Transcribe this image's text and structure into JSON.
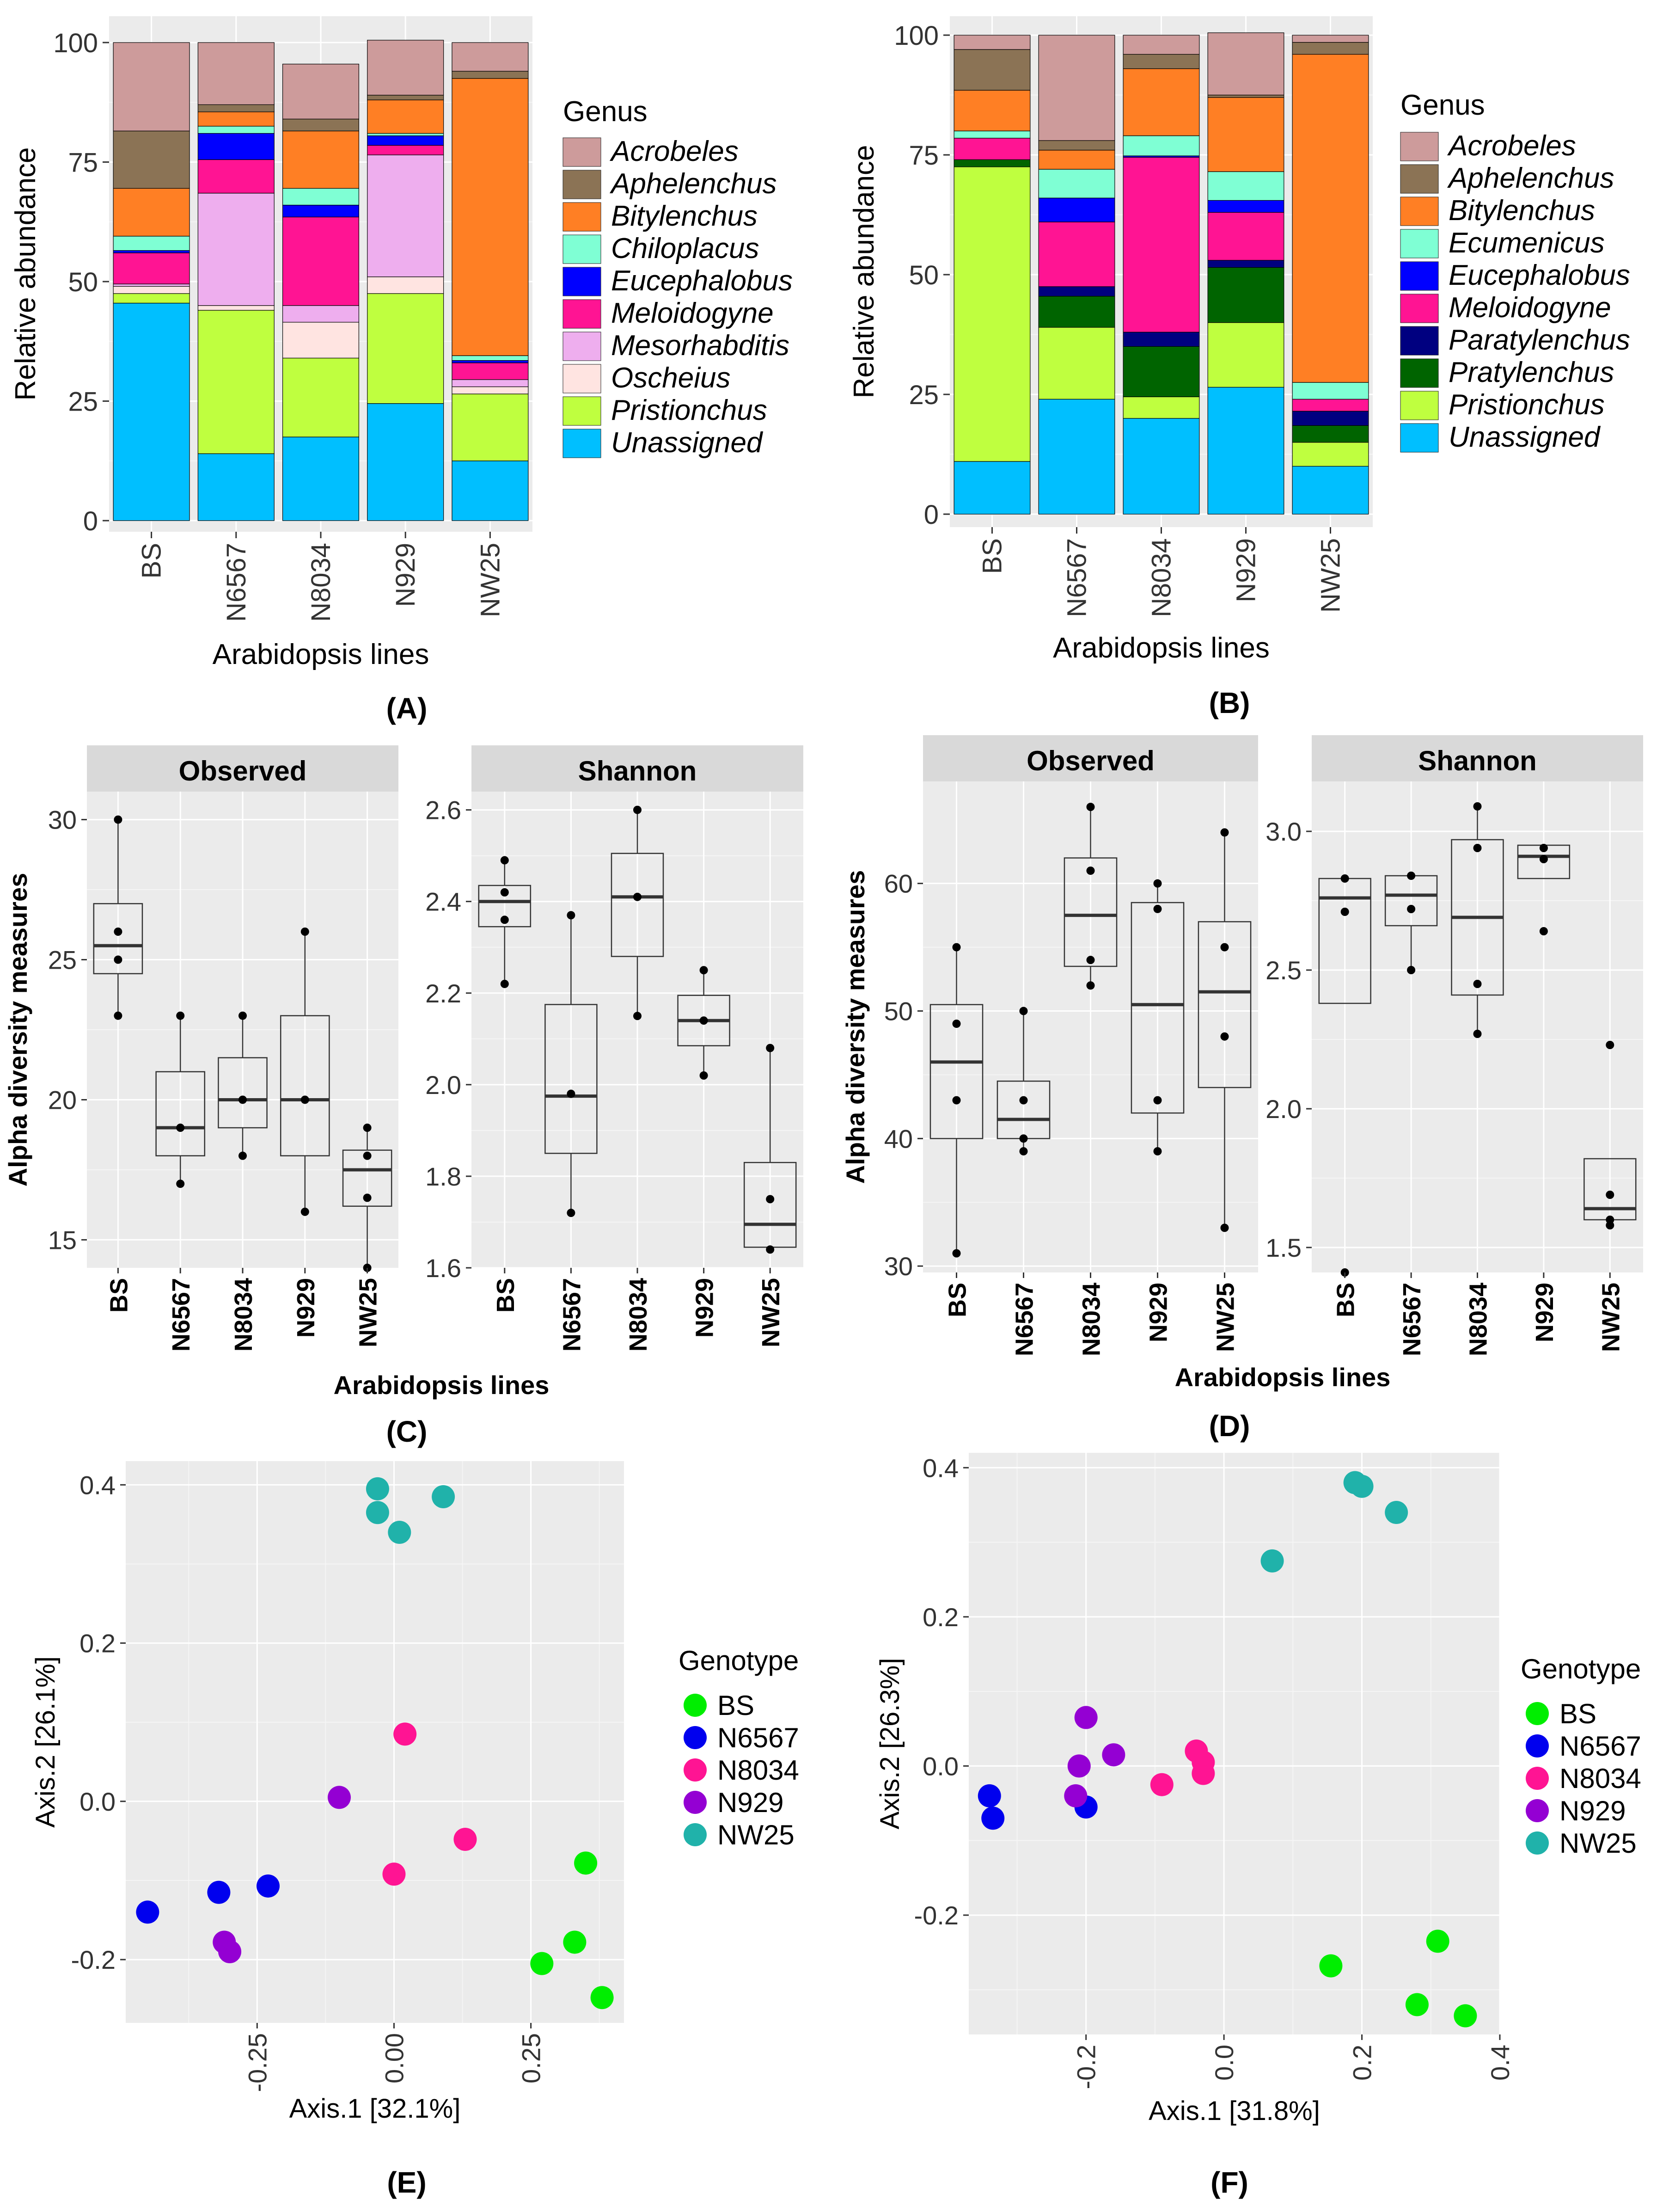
{
  "panel_labels": [
    "(A)",
    "(B)",
    "(C)",
    "(D)",
    "(E)",
    "(F)"
  ],
  "chart_data": [
    {
      "panel": "A",
      "type": "bar",
      "stacked": true,
      "title": "",
      "xlabel": "Arabidopsis lines",
      "ylabel": "Relative abundance",
      "ylim": [
        0,
        100
      ],
      "yticks": [
        0,
        25,
        50,
        75,
        100
      ],
      "categories": [
        "BS",
        "N6567",
        "N8034",
        "N929",
        "NW25"
      ],
      "legend_title": "Genus",
      "series": [
        {
          "name": "Unassigned",
          "color": "#00BFFF",
          "values": [
            45.5,
            14,
            17.5,
            24.5,
            12.5
          ]
        },
        {
          "name": "Pristionchus",
          "color": "#BFFF3F",
          "values": [
            2,
            30,
            16.5,
            23,
            14
          ]
        },
        {
          "name": "Oscheius",
          "color": "#FFE4E1",
          "values": [
            1.5,
            1,
            7.5,
            3.5,
            1.5
          ]
        },
        {
          "name": "Mesorhabditis",
          "color": "#EEAEEE",
          "values": [
            0.5,
            23.5,
            3.5,
            25.5,
            1.5
          ]
        },
        {
          "name": "Meloidogyne",
          "color": "#FF1493",
          "values": [
            6.5,
            7,
            18.5,
            2,
            3.5
          ]
        },
        {
          "name": "Eucephalobus",
          "color": "#0000FF",
          "values": [
            0.5,
            5.5,
            2.5,
            2,
            0.5
          ]
        },
        {
          "name": "Chiloplacus",
          "color": "#7FFFD4",
          "values": [
            3,
            1.5,
            3.5,
            0.5,
            1
          ]
        },
        {
          "name": "Bitylenchus",
          "color": "#FF7F24",
          "values": [
            10,
            3,
            12,
            7,
            58
          ]
        },
        {
          "name": "Aphelenchus",
          "color": "#8B7355",
          "values": [
            12,
            1.5,
            2.5,
            1,
            1.5
          ]
        },
        {
          "name": "Acrobeles",
          "color": "#CD9B9B",
          "values": [
            18.5,
            13,
            11.5,
            11.5,
            6
          ]
        }
      ]
    },
    {
      "panel": "B",
      "type": "bar",
      "stacked": true,
      "title": "",
      "xlabel": "Arabidopsis lines",
      "ylabel": "Relative abundance",
      "ylim": [
        0,
        100
      ],
      "yticks": [
        0,
        25,
        50,
        75,
        100
      ],
      "categories": [
        "BS",
        "N6567",
        "N8034",
        "N929",
        "NW25"
      ],
      "legend_title": "Genus",
      "series": [
        {
          "name": "Unassigned",
          "color": "#00BFFF",
          "values": [
            11,
            24,
            20,
            26.5,
            10
          ]
        },
        {
          "name": "Pristionchus",
          "color": "#BFFF3F",
          "values": [
            61.5,
            15,
            4.5,
            13.5,
            5
          ]
        },
        {
          "name": "Pratylenchus",
          "color": "#006400",
          "values": [
            1.5,
            6.5,
            10.5,
            11.5,
            3.5
          ]
        },
        {
          "name": "Paratylenchus",
          "color": "#000080",
          "values": [
            0,
            2,
            3,
            1.5,
            3
          ]
        },
        {
          "name": "Meloidogyne",
          "color": "#FF1493",
          "values": [
            4.5,
            13.5,
            36.5,
            10,
            2.5
          ]
        },
        {
          "name": "Eucephalobus",
          "color": "#0000FF",
          "values": [
            0,
            5,
            0.3,
            2.5,
            0
          ]
        },
        {
          "name": "Ecumenicus",
          "color": "#7FFFD4",
          "values": [
            1.5,
            6,
            4.2,
            6,
            3.5
          ]
        },
        {
          "name": "Bitylenchus",
          "color": "#FF7F24",
          "values": [
            8.5,
            4,
            14,
            15.5,
            68.5
          ]
        },
        {
          "name": "Aphelenchus",
          "color": "#8B7355",
          "values": [
            8.5,
            2,
            3,
            0.5,
            2.5
          ]
        },
        {
          "name": "Acrobeles",
          "color": "#CD9B9B",
          "values": [
            3,
            22,
            4,
            13,
            1.5
          ]
        }
      ]
    },
    {
      "panel": "C",
      "type": "box",
      "xlabel": "Arabidopsis lines",
      "ylabel": "Alpha diversity measures",
      "categories": [
        "BS",
        "N6567",
        "N8034",
        "N929",
        "NW25"
      ],
      "facets": [
        {
          "name": "Observed",
          "ylim": [
            14,
            31
          ],
          "yticks": [
            15,
            20,
            25,
            30
          ],
          "boxes": [
            {
              "q1": 24.5,
              "median": 25.5,
              "q3": 27,
              "wlo": 23,
              "whi": 30,
              "points": [
                23,
                25,
                26,
                30
              ]
            },
            {
              "q1": 18,
              "median": 19,
              "q3": 21,
              "wlo": 17,
              "whi": 23,
              "points": [
                17,
                19,
                23
              ]
            },
            {
              "q1": 19,
              "median": 20,
              "q3": 21.5,
              "wlo": 18,
              "whi": 23,
              "points": [
                18,
                20,
                23
              ]
            },
            {
              "q1": 18,
              "median": 20,
              "q3": 23,
              "wlo": 16,
              "whi": 26,
              "points": [
                16,
                20,
                26
              ]
            },
            {
              "q1": 16.2,
              "median": 17.5,
              "q3": 18.2,
              "wlo": 14,
              "whi": 19,
              "points": [
                14,
                16.5,
                18,
                19
              ]
            }
          ]
        },
        {
          "name": "Shannon",
          "ylim": [
            1.6,
            2.64
          ],
          "yticks": [
            1.6,
            1.8,
            2.0,
            2.2,
            2.4,
            2.6
          ],
          "tick_labels": [
            "1.6",
            "1.8",
            "2.0",
            "2.2",
            "2.4",
            "2.6"
          ],
          "boxes": [
            {
              "q1": 2.345,
              "median": 2.4,
              "q3": 2.435,
              "wlo": 2.22,
              "whi": 2.49,
              "points": [
                2.22,
                2.36,
                2.42,
                2.49
              ]
            },
            {
              "q1": 1.85,
              "median": 1.975,
              "q3": 2.175,
              "wlo": 1.72,
              "whi": 2.37,
              "points": [
                1.72,
                1.98,
                2.37
              ]
            },
            {
              "q1": 2.28,
              "median": 2.41,
              "q3": 2.505,
              "wlo": 2.15,
              "whi": 2.6,
              "points": [
                2.15,
                2.41,
                2.6
              ]
            },
            {
              "q1": 2.085,
              "median": 2.14,
              "q3": 2.195,
              "wlo": 2.02,
              "whi": 2.25,
              "points": [
                2.02,
                2.14,
                2.25
              ]
            },
            {
              "q1": 1.645,
              "median": 1.695,
              "q3": 1.83,
              "wlo": 1.645,
              "whi": 2.08,
              "points": [
                1.64,
                1.75,
                2.08
              ]
            }
          ]
        }
      ]
    },
    {
      "panel": "D",
      "type": "box",
      "xlabel": "Arabidopsis lines",
      "ylabel": "Alpha diversity measures",
      "categories": [
        "BS",
        "N6567",
        "N8034",
        "N929",
        "NW25"
      ],
      "facets": [
        {
          "name": "Observed",
          "ylim": [
            29.5,
            68
          ],
          "yticks": [
            30,
            40,
            50,
            60
          ],
          "boxes": [
            {
              "q1": 40,
              "median": 46,
              "q3": 50.5,
              "wlo": 31,
              "whi": 55,
              "points": [
                31,
                43,
                49,
                55
              ]
            },
            {
              "q1": 40,
              "median": 41.5,
              "q3": 44.5,
              "wlo": 39,
              "whi": 50,
              "points": [
                39,
                40,
                43,
                50
              ]
            },
            {
              "q1": 53.5,
              "median": 57.5,
              "q3": 62,
              "wlo": 52,
              "whi": 66,
              "points": [
                52,
                54,
                61,
                66
              ]
            },
            {
              "q1": 42,
              "median": 50.5,
              "q3": 58.5,
              "wlo": 39,
              "whi": 60,
              "points": [
                39,
                43,
                58,
                60
              ]
            },
            {
              "q1": 44,
              "median": 51.5,
              "q3": 57,
              "wlo": 33,
              "whi": 64,
              "points": [
                33,
                48,
                55,
                64
              ]
            }
          ]
        },
        {
          "name": "Shannon",
          "ylim": [
            1.41,
            3.18
          ],
          "yticks": [
            1.5,
            2.0,
            2.5,
            3.0
          ],
          "tick_labels": [
            "1.5",
            "2.0",
            "2.5",
            "3.0"
          ],
          "boxes": [
            {
              "q1": 2.38,
              "median": 2.76,
              "q3": 2.83,
              "wlo": 2.38,
              "whi": 2.83,
              "points": [
                1.41,
                2.71,
                2.83
              ]
            },
            {
              "q1": 2.66,
              "median": 2.77,
              "q3": 2.84,
              "wlo": 2.5,
              "whi": 2.84,
              "points": [
                2.5,
                2.72,
                2.84
              ]
            },
            {
              "q1": 2.41,
              "median": 2.69,
              "q3": 2.97,
              "wlo": 2.27,
              "whi": 3.09,
              "points": [
                2.27,
                2.45,
                2.94,
                3.09
              ]
            },
            {
              "q1": 2.83,
              "median": 2.91,
              "q3": 2.95,
              "wlo": 2.83,
              "whi": 2.95,
              "points": [
                2.64,
                2.9,
                2.94
              ]
            },
            {
              "q1": 1.6,
              "median": 1.64,
              "q3": 1.82,
              "wlo": 1.58,
              "whi": 1.82,
              "points": [
                1.58,
                1.6,
                1.69,
                2.23
              ]
            }
          ]
        }
      ]
    },
    {
      "panel": "E",
      "type": "scatter",
      "xlabel": "Axis.1   [32.1%]",
      "ylabel": "Axis.2   [26.1%]",
      "xlim": [
        -0.49,
        0.42
      ],
      "ylim": [
        -0.28,
        0.43
      ],
      "xticks": [
        -0.25,
        0.0,
        0.25
      ],
      "xtick_labels": [
        "-0.25",
        "0.00",
        "0.25"
      ],
      "yticks": [
        -0.2,
        0.0,
        0.2,
        0.4
      ],
      "ytick_labels": [
        "-0.2",
        "0.0",
        "0.2",
        "0.4"
      ],
      "legend_title": "Genotype",
      "groups": [
        {
          "name": "BS",
          "color": "#00EE00",
          "points": [
            [
              0.35,
              -0.078
            ],
            [
              0.33,
              -0.178
            ],
            [
              0.27,
              -0.205
            ],
            [
              0.38,
              -0.248
            ]
          ]
        },
        {
          "name": "N6567",
          "color": "#0000EE",
          "points": [
            [
              -0.45,
              -0.14
            ],
            [
              -0.32,
              -0.115
            ],
            [
              -0.23,
              -0.107
            ]
          ]
        },
        {
          "name": "N8034",
          "color": "#FF1493",
          "points": [
            [
              0.02,
              0.085
            ],
            [
              0.13,
              -0.048
            ],
            [
              0.0,
              -0.092
            ]
          ]
        },
        {
          "name": "N929",
          "color": "#9400D3",
          "points": [
            [
              -0.1,
              0.005
            ],
            [
              -0.31,
              -0.178
            ],
            [
              -0.3,
              -0.19
            ]
          ]
        },
        {
          "name": "NW25",
          "color": "#20B2AA",
          "points": [
            [
              -0.03,
              0.395
            ],
            [
              -0.03,
              0.365
            ],
            [
              0.01,
              0.34
            ],
            [
              0.09,
              0.385
            ]
          ]
        }
      ]
    },
    {
      "panel": "F",
      "type": "scatter",
      "xlabel": "Axis.1   [31.8%]",
      "ylabel": "Axis.2   [26.3%]",
      "xlim": [
        -0.37,
        0.4
      ],
      "ylim": [
        -0.36,
        0.42
      ],
      "xticks": [
        -0.2,
        0.0,
        0.2,
        0.4
      ],
      "xtick_labels": [
        "-0.2",
        "0.0",
        "0.2",
        "0.4"
      ],
      "yticks": [
        -0.2,
        0.0,
        0.2,
        0.4
      ],
      "ytick_labels": [
        "-0.2",
        "0.0",
        "0.2",
        "0.4"
      ],
      "legend_title": "Genotype",
      "groups": [
        {
          "name": "BS",
          "color": "#00EE00",
          "points": [
            [
              0.31,
              -0.235
            ],
            [
              0.155,
              -0.268
            ],
            [
              0.28,
              -0.32
            ],
            [
              0.35,
              -0.335
            ]
          ]
        },
        {
          "name": "N6567",
          "color": "#0000EE",
          "points": [
            [
              -0.34,
              -0.04
            ],
            [
              -0.335,
              -0.07
            ],
            [
              -0.2,
              -0.055
            ]
          ]
        },
        {
          "name": "N8034",
          "color": "#FF1493",
          "points": [
            [
              -0.04,
              0.02
            ],
            [
              -0.03,
              0.005
            ],
            [
              -0.03,
              -0.01
            ],
            [
              -0.09,
              -0.025
            ]
          ]
        },
        {
          "name": "N929",
          "color": "#9400D3",
          "points": [
            [
              -0.2,
              0.065
            ],
            [
              -0.16,
              0.015
            ],
            [
              -0.21,
              0.0
            ],
            [
              -0.215,
              -0.04
            ]
          ]
        },
        {
          "name": "NW25",
          "color": "#20B2AA",
          "points": [
            [
              0.19,
              0.38
            ],
            [
              0.2,
              0.375
            ],
            [
              0.25,
              0.34
            ],
            [
              0.07,
              0.275
            ]
          ]
        }
      ]
    }
  ]
}
